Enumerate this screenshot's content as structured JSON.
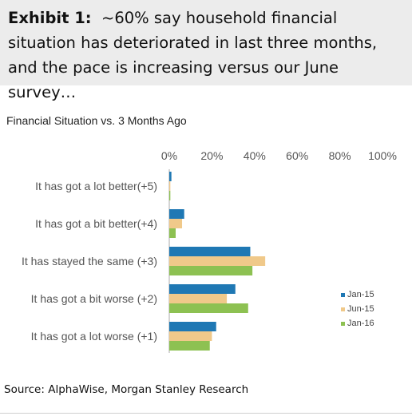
{
  "exhibit": {
    "label": "Exhibit 1:",
    "headline": "~60% say household financial situation has deteriorated in last three months, and the pace is increasing versus our June survey…"
  },
  "source": "Source: AlphaWise, Morgan Stanley Research",
  "chart_data": {
    "type": "bar",
    "orientation": "horizontal",
    "title": "Financial Situation vs. 3 Months Ago",
    "xlabel": "",
    "ylabel": "",
    "xlim": [
      0,
      100
    ],
    "x_ticks": [
      "0%",
      "20%",
      "40%",
      "60%",
      "80%",
      "100%"
    ],
    "x_axis_position": "top",
    "grid": false,
    "legend_position": "right",
    "categories": [
      "It has got a lot better(+5)",
      "It has got a bit better(+4)",
      "It has stayed the same (+3)",
      "It has got a bit worse (+2)",
      "It has got a lot worse (+1)"
    ],
    "series": [
      {
        "name": "Jan-15",
        "color": "#1f78b4",
        "values": [
          1,
          7,
          38,
          31,
          22
        ]
      },
      {
        "name": "Jun-15",
        "color": "#f0c98a",
        "values": [
          0.5,
          6,
          45,
          27,
          20
        ]
      },
      {
        "name": "Jan-16",
        "color": "#8dc152",
        "values": [
          0.5,
          3,
          39,
          37,
          19
        ]
      }
    ]
  }
}
